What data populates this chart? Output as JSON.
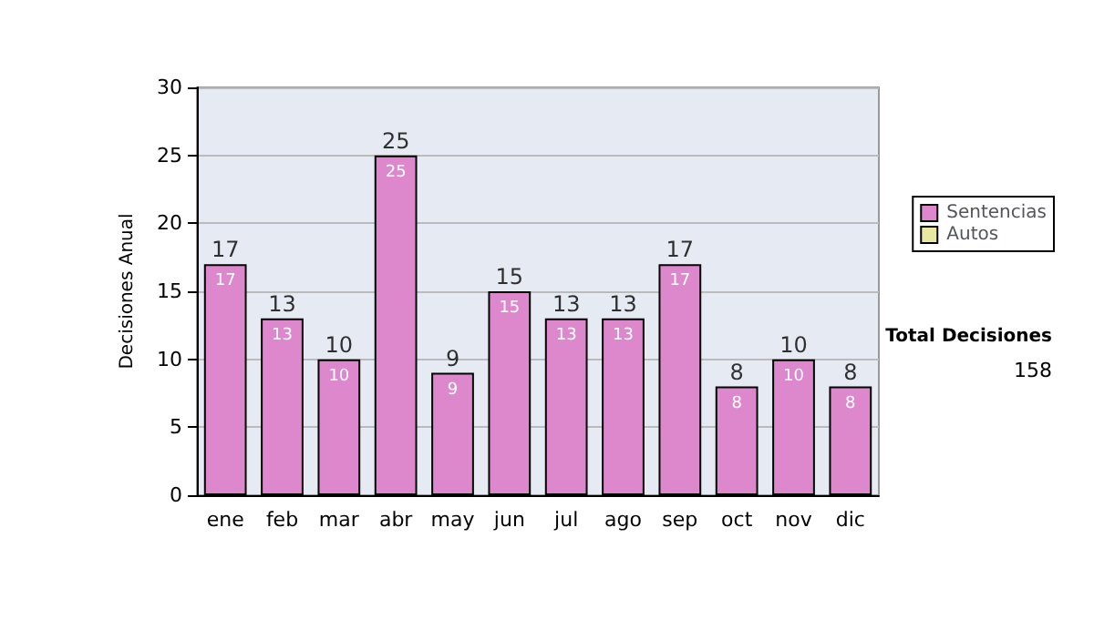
{
  "chart_data": {
    "type": "bar",
    "ylabel": "Decisiones Anual",
    "categories": [
      "ene",
      "feb",
      "mar",
      "abr",
      "may",
      "jun",
      "jul",
      "ago",
      "sep",
      "oct",
      "nov",
      "dic"
    ],
    "series": [
      {
        "name": "Sentencias",
        "color": "#dd88cc",
        "values": [
          17,
          13,
          10,
          25,
          9,
          15,
          13,
          13,
          17,
          8,
          10,
          8
        ]
      },
      {
        "name": "Autos",
        "color": "#e8e8a0",
        "values": [
          null,
          null,
          null,
          null,
          null,
          null,
          null,
          null,
          null,
          null,
          null,
          null
        ]
      }
    ],
    "stacked": true,
    "totals": [
      "17",
      "13",
      "10",
      "25",
      "9",
      "15",
      "13",
      "13",
      "17",
      "8",
      "10",
      "8"
    ],
    "ylim": [
      0,
      30
    ],
    "yticks": [
      0,
      5,
      10,
      15,
      20,
      25,
      30
    ],
    "grid": "y",
    "legend": "right",
    "data_labels": true,
    "annotations": [
      "Total Decisiones",
      "158"
    ]
  }
}
